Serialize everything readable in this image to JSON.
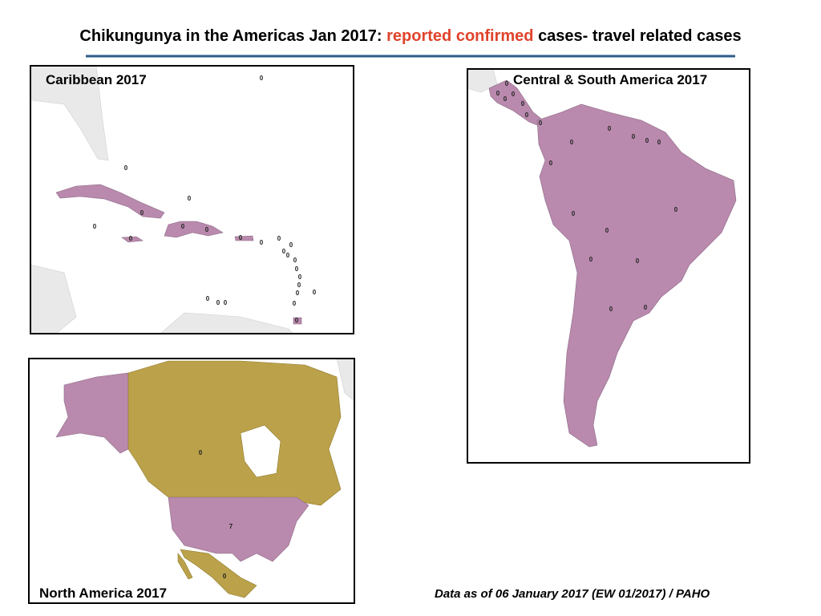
{
  "header": {
    "title_start": "Chikungunya in the Americas Jan 2017:",
    "title_highlight": "reported confirmed",
    "title_end": "cases- travel related cases"
  },
  "maps": [
    {
      "title": "Caribbean 2017",
      "labels": [
        0,
        0,
        0,
        0,
        0,
        0,
        0,
        0,
        0,
        0,
        0,
        0,
        0,
        0,
        0,
        0,
        0,
        0,
        0,
        0,
        0,
        0,
        0,
        0,
        0
      ]
    },
    {
      "title": "Central & South America  2017",
      "labels": [
        0,
        0,
        0,
        0,
        0,
        0,
        0,
        0,
        0,
        0,
        0,
        0,
        0,
        0,
        0,
        0,
        0,
        0,
        0,
        0
      ]
    },
    {
      "title": "North America  2017",
      "labels": [
        0,
        7,
        0
      ]
    }
  ],
  "footer": {
    "source": "Data as of 06 January 2017 (EW 01/2017) / PAHO"
  }
}
